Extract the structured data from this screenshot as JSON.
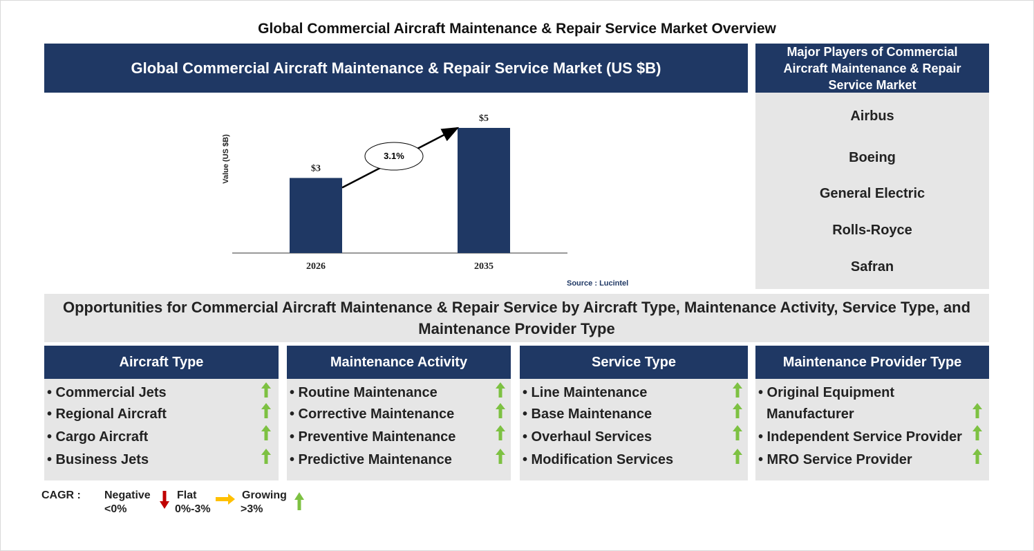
{
  "title": "Global Commercial Aircraft Maintenance & Repair Service Market Overview",
  "market_header": "Global Commercial Aircraft Maintenance & Repair Service Market (US $B)",
  "players": {
    "header": "Major Players of Commercial Aircraft Maintenance & Repair Service Market",
    "items": [
      "Airbus",
      "Boeing",
      "General Electric",
      "Rolls-Royce",
      "Safran"
    ]
  },
  "chart_data": {
    "type": "bar",
    "categories": [
      "2026",
      "2035"
    ],
    "values": [
      3,
      5
    ],
    "value_labels": [
      "$3",
      "$5"
    ],
    "ylabel": "Value (US $B)",
    "cagr_label": "3.1%",
    "bar_color": "#1f3864"
  },
  "source": "Source : Lucintel",
  "opportunities_title": "Opportunities for Commercial Aircraft Maintenance & Repair Service by Aircraft Type, Maintenance Activity, Service Type, and Maintenance Provider Type",
  "segments": [
    {
      "header": "Aircraft Type",
      "items": [
        "• Commercial Jets",
        "• Regional Aircraft",
        "• Cargo Aircraft",
        "• Business Jets"
      ],
      "trend": [
        "growing",
        "growing",
        "growing",
        "growing"
      ]
    },
    {
      "header": "Maintenance Activity",
      "items": [
        "• Routine Maintenance",
        "• Corrective Maintenance",
        "• Preventive Maintenance",
        "• Predictive Maintenance"
      ],
      "trend": [
        "growing",
        "growing",
        "growing",
        "growing"
      ]
    },
    {
      "header": "Service Type",
      "items": [
        "• Line Maintenance",
        "• Base Maintenance",
        "• Overhaul Services",
        "• Modification Services"
      ],
      "trend": [
        "growing",
        "growing",
        "growing",
        "growing"
      ]
    },
    {
      "header": "Maintenance Provider Type",
      "items": [
        "• Original Equipment",
        "Manufacturer",
        "• Independent Service Provider",
        "• MRO Service Provider"
      ],
      "trend": [
        "growing",
        "growing",
        "growing"
      ]
    }
  ],
  "legend": {
    "label": "CAGR :",
    "negative": "Negative",
    "negative_range": "<0%",
    "flat": "Flat",
    "flat_range": "0%-3%",
    "growing": "Growing",
    "growing_range": ">3%"
  },
  "colors": {
    "navy": "#1f3864",
    "panel_grey": "#e6e6e6",
    "growing": "#7dc142",
    "negative": "#c00000",
    "flat": "#ffc000"
  }
}
